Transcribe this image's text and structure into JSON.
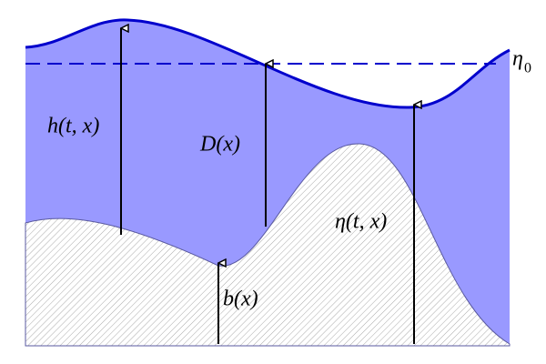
{
  "labels": {
    "h": "h(t, x)",
    "D": "D(x)",
    "eta": "η(t, x)",
    "b": "b(x)",
    "eta0": "η",
    "eta0_sub": "0"
  }
}
